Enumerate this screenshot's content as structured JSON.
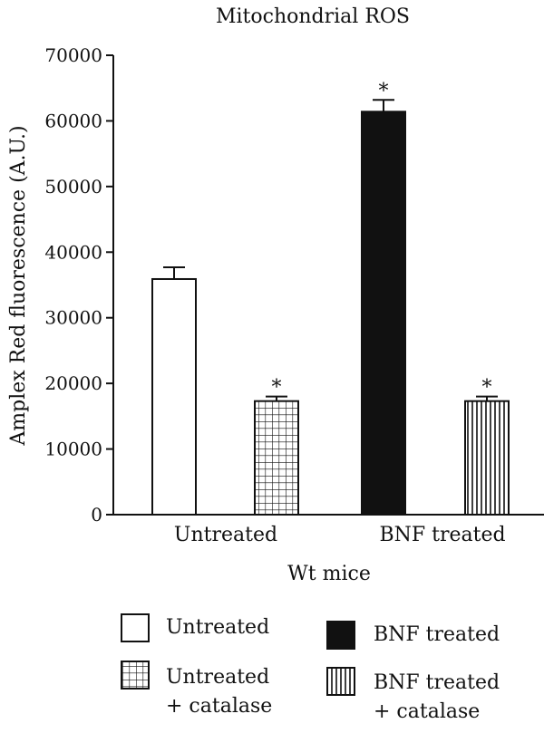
{
  "chart_data": {
    "type": "bar",
    "title": "Mitochondrial ROS",
    "ylabel": "Amplex Red fluorescence (A.U.)",
    "xlabel": "Wt mice",
    "ylim": [
      0,
      70000
    ],
    "yticks": [
      0,
      10000,
      20000,
      30000,
      40000,
      50000,
      60000,
      70000
    ],
    "ytick_labels": [
      "0",
      "10000",
      "20000",
      "30000",
      "40000",
      "50000",
      "60000",
      "70000"
    ],
    "groups": [
      "Untreated",
      "BNF treated"
    ],
    "bars": [
      {
        "series": "Untreated",
        "group": "Untreated",
        "value": 35900,
        "error": 1800,
        "significance": "",
        "pattern": "open"
      },
      {
        "series": "Untreated + catalase",
        "group": "Untreated",
        "value": 17300,
        "error": 700,
        "significance": "*",
        "pattern": "grid"
      },
      {
        "series": "BNF treated",
        "group": "BNF treated",
        "value": 61400,
        "error": 1800,
        "significance": "*",
        "pattern": "solid"
      },
      {
        "series": "BNF treated + catalase",
        "group": "BNF treated",
        "value": 17300,
        "error": 700,
        "significance": "*",
        "pattern": "vertical-lines"
      }
    ],
    "legend": {
      "placement": "bottom",
      "entries": [
        {
          "lines": [
            "Untreated"
          ],
          "pattern": "open"
        },
        {
          "lines": [
            "BNF treated"
          ],
          "pattern": "solid"
        },
        {
          "lines": [
            "Untreated",
            "+ catalase"
          ],
          "pattern": "grid"
        },
        {
          "lines": [
            "BNF treated",
            "+ catalase"
          ],
          "pattern": "vertical-lines"
        }
      ]
    },
    "grid": false,
    "colors": {
      "ink": "#111111",
      "background": "#ffffff"
    }
  }
}
